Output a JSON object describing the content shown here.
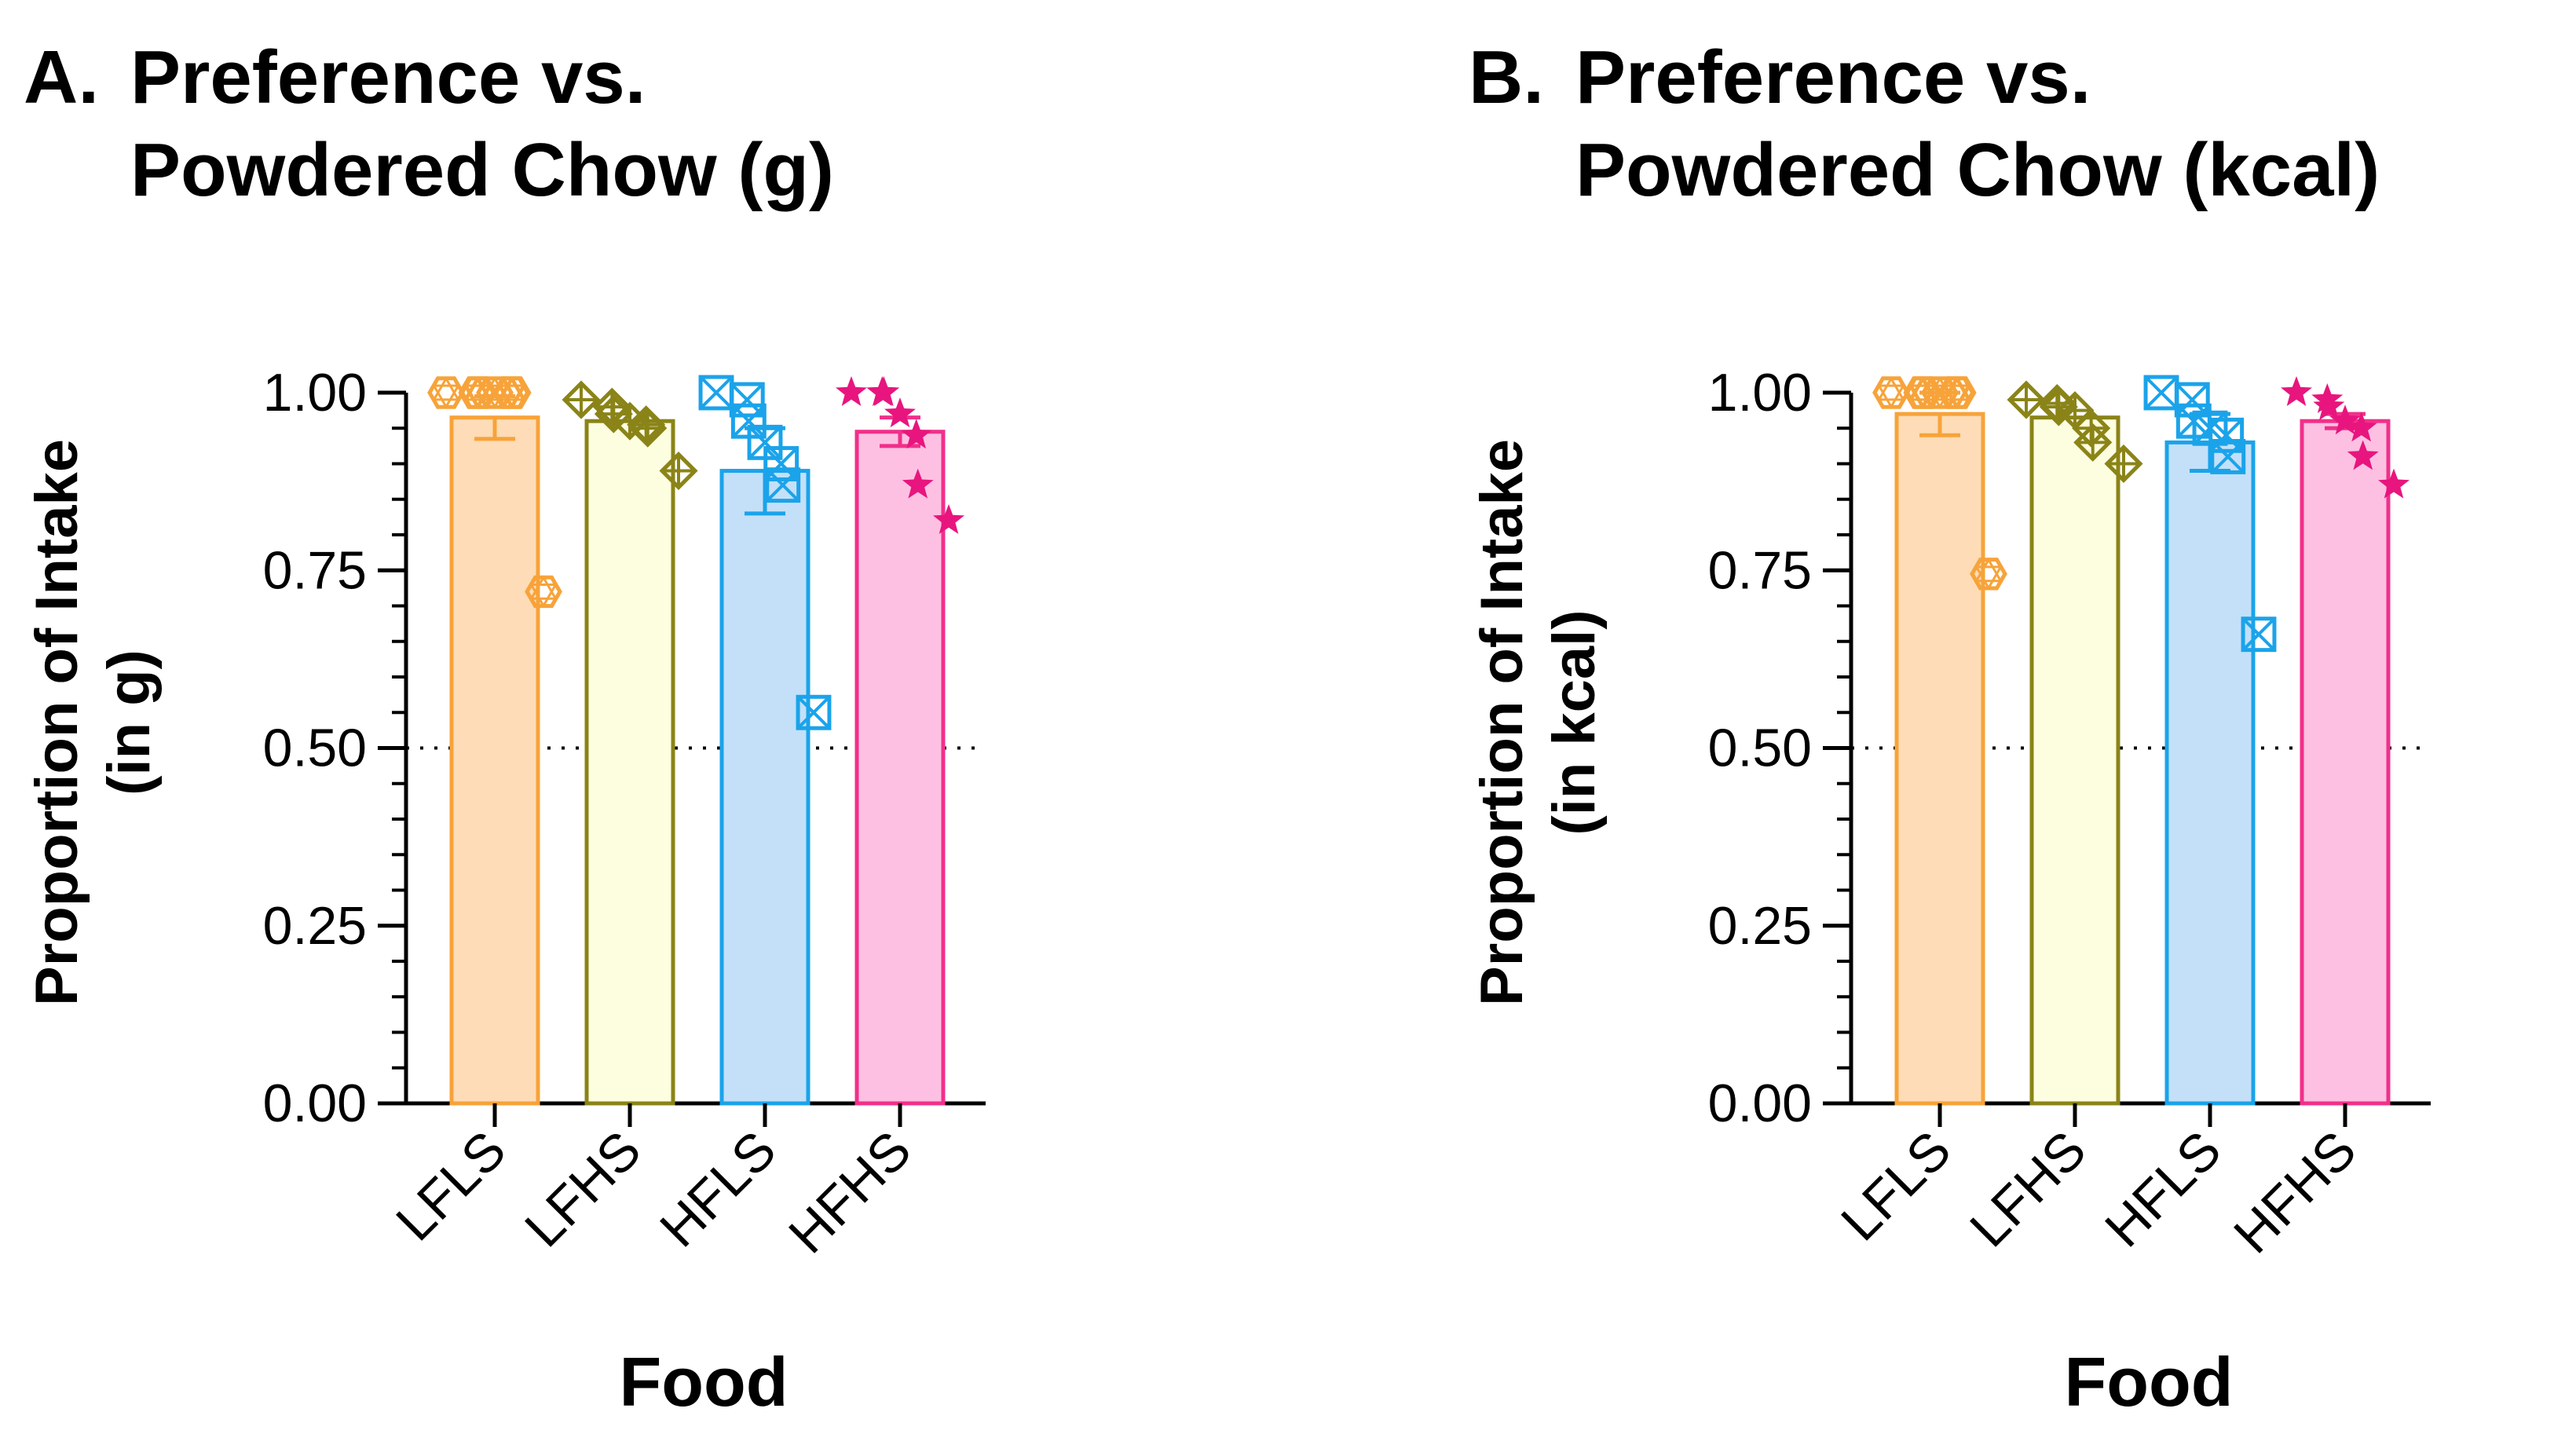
{
  "chart_data": [
    {
      "type": "bar",
      "panel_label": "A.",
      "title_lines": [
        "Preference vs.",
        "Powdered Chow (g)"
      ],
      "ylabel_lines": [
        "Proportion of Intake",
        "(in g)"
      ],
      "xlabel": "Food",
      "ylim": [
        0,
        1
      ],
      "yticks": [
        "0.00",
        "0.25",
        "0.50",
        "0.75",
        "1.00"
      ],
      "reference_line": 0.5,
      "categories": [
        "LFLS",
        "LFHS",
        "HFLS",
        "HFHS"
      ],
      "values": [
        0.965,
        0.96,
        0.89,
        0.945
      ],
      "sem": [
        0.03,
        0.0,
        0.06,
        0.02
      ],
      "points": [
        [
          1.0,
          1.0,
          1.0,
          1.0,
          1.0,
          1.0,
          0.72
        ],
        [
          0.99,
          0.98,
          0.97,
          0.96,
          0.955,
          0.95,
          0.89
        ],
        [
          1.0,
          0.99,
          0.96,
          0.93,
          0.9,
          0.87,
          0.55
        ],
        [
          1.0,
          1.0,
          1.0,
          0.97,
          0.94,
          0.87,
          0.82
        ]
      ]
    },
    {
      "type": "bar",
      "panel_label": "B.",
      "title_lines": [
        "Preference vs.",
        "Powdered Chow (kcal)"
      ],
      "ylabel_lines": [
        "Proportion of Intake",
        "(in kcal)"
      ],
      "xlabel": "Food",
      "ylim": [
        0,
        1
      ],
      "yticks": [
        "0.00",
        "0.25",
        "0.50",
        "0.75",
        "1.00"
      ],
      "reference_line": 0.5,
      "categories": [
        "LFLS",
        "LFHS",
        "HFLS",
        "HFHS"
      ],
      "values": [
        0.97,
        0.965,
        0.93,
        0.96
      ],
      "sem": [
        0.03,
        0.0,
        0.04,
        0.01
      ],
      "points": [
        [
          1.0,
          1.0,
          1.0,
          1.0,
          1.0,
          1.0,
          0.745
        ],
        [
          0.99,
          0.985,
          0.98,
          0.975,
          0.95,
          0.93,
          0.9
        ],
        [
          1.0,
          0.99,
          0.96,
          0.95,
          0.94,
          0.91,
          0.66
        ],
        [
          1.0,
          0.99,
          0.98,
          0.96,
          0.95,
          0.91,
          0.87
        ]
      ]
    }
  ],
  "styles": {
    "colors": {
      "fills": [
        "#fddcb7",
        "#fdfde0",
        "#c3e0f8",
        "#fdc0e2"
      ],
      "strokes": [
        "#f7a33a",
        "#8a8418",
        "#1ba3ea",
        "#f0308a"
      ],
      "markers": [
        "#f7a33a",
        "#8a8418",
        "#1ba3ea",
        "#e8157e"
      ]
    },
    "marker_shapes": [
      "hexagon-star-icon",
      "diamond-plus-icon",
      "square-x-icon",
      "star-icon"
    ]
  }
}
